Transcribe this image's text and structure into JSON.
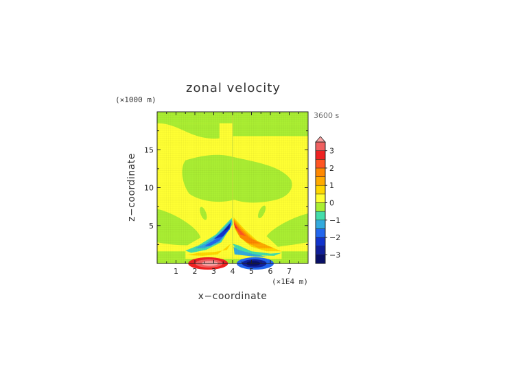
{
  "chart_data": {
    "type": "heatmap",
    "title": "zonal velocity",
    "time_label": "3600 s",
    "xlabel": "x−coordinate",
    "ylabel": "z−coordinate",
    "x_scale_label": "(×1E4 m)",
    "y_scale_label": "(×1000 m)",
    "xlim": [
      0,
      8
    ],
    "ylim": [
      0,
      20
    ],
    "x_ticks": [
      1,
      2,
      3,
      4,
      5,
      6,
      7
    ],
    "y_ticks": [
      5,
      10,
      15
    ],
    "colorbar": {
      "ticks": [
        3,
        2,
        1,
        0,
        -1,
        -2,
        -3
      ],
      "tick_labels": [
        "3",
        "2",
        "1",
        "0",
        "−1",
        "−2",
        "−3"
      ],
      "range": [
        -3.5,
        3.5
      ],
      "levels": 14,
      "extend": "max"
    },
    "colors": {
      "neutral_positive": "#ffff33",
      "neutral_negative": "#aaee33",
      "positive_ramp": [
        "#ffff33",
        "#ffd700",
        "#ffaa00",
        "#ff8800",
        "#ff5522",
        "#ee2222",
        "#f06060",
        "#f7a3a3"
      ],
      "negative_ramp": [
        "#aaee33",
        "#44ddaa",
        "#33aadd",
        "#2266ee",
        "#1133cc",
        "#101f99",
        "#080f66"
      ]
    }
  }
}
